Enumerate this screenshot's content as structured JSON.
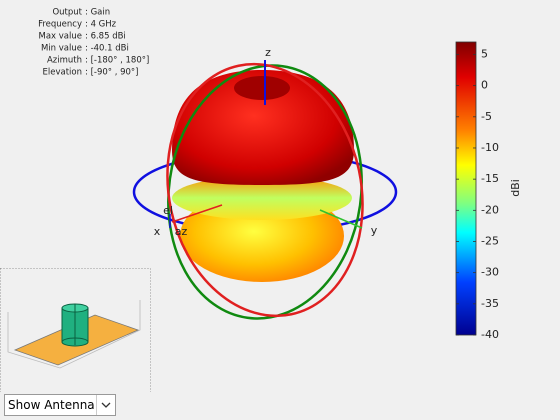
{
  "info": {
    "rows": [
      {
        "label": "Output",
        "value": ": Gain"
      },
      {
        "label": "Frequency",
        "value": ": 4 GHz"
      },
      {
        "label": "Max value",
        "value": ": 6.85 dBi"
      },
      {
        "label": "Min value",
        "value": ": -40.1 dBi"
      },
      {
        "label": "Azimuth",
        "value": ": [-180° , 180°]"
      },
      {
        "label": "Elevation",
        "value": ": [-90° , 90°]"
      }
    ]
  },
  "colorbar": {
    "label": "dBi",
    "lim": [
      -40,
      7
    ],
    "ticks": [
      5,
      0,
      -5,
      -10,
      -15,
      -20,
      -25,
      -30,
      -35,
      -40
    ]
  },
  "axes": {
    "x": "x",
    "y": "y",
    "z": "z",
    "el": "el",
    "az": "az"
  },
  "dropdown": {
    "selected": "Show Antenna"
  }
}
